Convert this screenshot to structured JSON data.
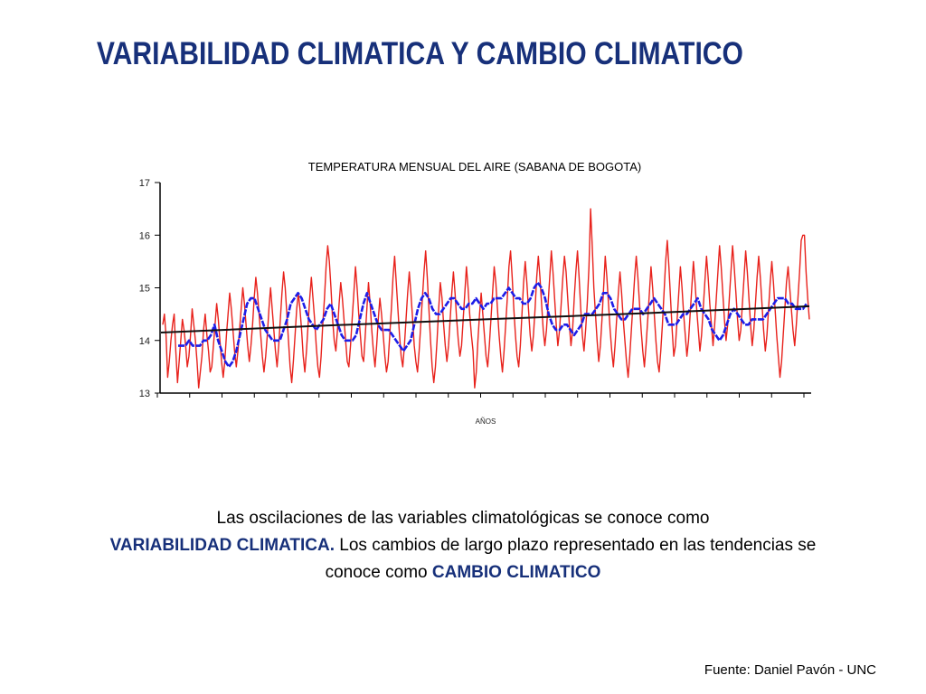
{
  "slide": {
    "title": "VARIABILIDAD CLIMATICA Y CAMBIO CLIMATICO"
  },
  "chart_data": {
    "type": "line",
    "title": "TEMPERATURA MENSUAL DEL AIRE (SABANA DE BOGOTA)",
    "xlabel": "AÑOS",
    "ylabel": "",
    "ylim": [
      13,
      17
    ],
    "yticks": [
      "13",
      "14",
      "15",
      "16",
      "17"
    ],
    "xticks": [
      "",
      "",
      "",
      "",
      "",
      "",
      "",
      "",
      "",
      "",
      "",
      "",
      "",
      "",
      "",
      "",
      "",
      "",
      "",
      "",
      ""
    ],
    "grid": false,
    "series": [
      {
        "values": [
          14.3,
          14.5,
          14.1,
          13.3,
          13.6,
          14.0,
          14.3,
          14.5,
          13.8,
          13.2,
          13.6,
          14.0,
          14.4,
          14.2,
          13.9,
          13.5,
          13.7,
          14.1,
          14.6,
          14.3,
          14.0,
          13.6,
          13.1,
          13.4,
          13.7,
          14.2,
          14.5,
          14.1,
          13.8,
          13.4,
          13.5,
          13.9,
          14.3,
          14.7,
          14.4,
          14.0,
          13.6,
          13.3,
          13.6,
          14.1,
          14.5,
          14.9,
          14.6,
          14.2,
          13.8,
          13.5,
          13.8,
          14.2,
          14.6,
          15.0,
          14.7,
          14.3,
          13.9,
          13.6,
          13.9,
          14.3,
          14.8,
          15.2,
          14.9,
          14.5,
          14.1,
          13.7,
          13.4,
          13.7,
          14.1,
          14.6,
          15.0,
          14.6,
          14.2,
          13.8,
          13.5,
          13.9,
          14.4,
          14.9,
          15.3,
          15.0,
          14.5,
          14.0,
          13.5,
          13.2,
          13.6,
          14.1,
          14.6,
          14.9,
          14.6,
          14.2,
          13.7,
          13.4,
          13.8,
          14.3,
          14.8,
          15.2,
          14.8,
          14.4,
          13.9,
          13.5,
          13.3,
          13.7,
          14.3,
          14.8,
          15.4,
          15.8,
          15.5,
          15.0,
          14.4,
          14.0,
          13.8,
          14.2,
          14.7,
          15.1,
          14.8,
          14.4,
          14.0,
          13.6,
          13.5,
          13.9,
          14.4,
          14.9,
          15.4,
          15.0,
          14.5,
          14.1,
          13.7,
          13.6,
          14.1,
          14.6,
          15.1,
          14.7,
          14.2,
          13.8,
          13.5,
          13.9,
          14.4,
          14.8,
          14.5,
          14.1,
          13.7,
          13.4,
          13.6,
          14.1,
          14.6,
          15.2,
          15.6,
          15.1,
          14.6,
          14.1,
          13.7,
          13.5,
          13.9,
          14.4,
          14.9,
          15.3,
          14.9,
          14.4,
          13.9,
          13.6,
          13.4,
          13.8,
          14.3,
          14.8,
          15.3,
          15.7,
          15.2,
          14.6,
          14.0,
          13.5,
          13.2,
          13.5,
          14.0,
          14.6,
          15.1,
          14.8,
          14.3,
          13.9,
          13.6,
          13.9,
          14.4,
          14.9,
          15.3,
          14.9,
          14.4,
          14.0,
          13.7,
          13.9,
          14.4,
          14.9,
          15.4,
          15.0,
          14.5,
          14.1,
          13.8,
          13.1,
          13.4,
          14.0,
          14.5,
          14.9,
          14.5,
          14.1,
          13.7,
          13.5,
          13.9,
          14.4,
          14.9,
          15.4,
          15.1,
          14.6,
          14.1,
          13.7,
          13.4,
          13.8,
          14.3,
          14.8,
          15.4,
          15.7,
          15.2,
          14.6,
          14.1,
          13.7,
          13.5,
          13.9,
          14.5,
          15.1,
          15.5,
          15.1,
          14.6,
          14.1,
          13.8,
          14.1,
          14.6,
          15.2,
          15.6,
          15.2,
          14.7,
          14.2,
          13.9,
          14.2,
          14.7,
          15.2,
          15.7,
          15.3,
          14.8,
          14.3,
          13.9,
          14.2,
          14.7,
          15.2,
          15.6,
          15.3,
          14.8,
          14.3,
          13.9,
          14.2,
          14.8,
          15.3,
          15.7,
          15.2,
          14.6,
          14.1,
          13.8,
          14.2,
          14.7,
          15.4,
          16.5,
          15.8,
          15.0,
          14.5,
          14.0,
          13.6,
          13.9,
          14.4,
          15.0,
          15.6,
          15.2,
          14.7,
          14.2,
          13.8,
          13.5,
          13.9,
          14.4,
          14.9,
          15.3,
          14.9,
          14.4,
          14.0,
          13.6,
          13.3,
          13.7,
          14.2,
          14.7,
          15.2,
          15.6,
          15.2,
          14.7,
          14.2,
          13.8,
          13.5,
          13.9,
          14.4,
          14.9,
          15.4,
          15.0,
          14.5,
          14.0,
          13.6,
          13.4,
          13.8,
          14.3,
          14.9,
          15.5,
          15.9,
          15.4,
          14.8,
          14.2,
          13.7,
          13.9,
          14.4,
          14.9,
          15.4,
          15.0,
          14.5,
          14.1,
          13.7,
          14.0,
          14.5,
          15.0,
          15.5,
          15.1,
          14.6,
          14.2,
          13.8,
          14.1,
          14.6,
          15.1,
          15.6,
          15.2,
          14.7,
          14.3,
          13.9,
          14.3,
          14.8,
          15.3,
          15.8,
          15.4,
          14.9,
          14.4,
          14.0,
          14.3,
          14.8,
          15.3,
          15.8,
          15.4,
          14.9,
          14.4,
          14.0,
          14.2,
          14.7,
          15.2,
          15.7,
          15.3,
          14.8,
          14.3,
          13.9,
          14.2,
          14.7,
          15.2,
          15.6,
          15.2,
          14.7,
          14.2,
          13.8,
          14.1,
          14.6,
          15.1,
          15.5,
          15.1,
          14.6,
          14.1,
          13.7,
          13.3,
          13.6,
          14.1,
          14.6,
          15.1,
          15.4,
          15.0,
          14.6,
          14.2,
          13.9,
          14.3,
          14.8,
          15.3,
          15.9,
          16.0,
          16.0,
          15.3,
          14.8,
          14.4
        ]
      },
      {
        "values": [
          13.9,
          13.9,
          13.9,
          14.0,
          13.9,
          13.9,
          13.9,
          14.0,
          14.0,
          14.1,
          14.3,
          14.0,
          13.8,
          13.6,
          13.5,
          13.6,
          13.8,
          14.1,
          14.4,
          14.7,
          14.8,
          14.8,
          14.6,
          14.4,
          14.2,
          14.1,
          14.0,
          14.0,
          14.0,
          14.2,
          14.4,
          14.7,
          14.8,
          14.9,
          14.8,
          14.6,
          14.4,
          14.3,
          14.2,
          14.3,
          14.4,
          14.6,
          14.7,
          14.5,
          14.3,
          14.1,
          14.0,
          14.0,
          14.0,
          14.1,
          14.4,
          14.7,
          14.9,
          14.7,
          14.5,
          14.3,
          14.2,
          14.2,
          14.2,
          14.1,
          14.0,
          13.9,
          13.8,
          13.9,
          14.0,
          14.3,
          14.6,
          14.8,
          14.9,
          14.8,
          14.6,
          14.5,
          14.5,
          14.6,
          14.7,
          14.8,
          14.8,
          14.7,
          14.6,
          14.6,
          14.7,
          14.7,
          14.8,
          14.7,
          14.6,
          14.7,
          14.7,
          14.8,
          14.8,
          14.8,
          14.9,
          15.0,
          14.9,
          14.8,
          14.8,
          14.7,
          14.7,
          14.8,
          15.0,
          15.1,
          15.0,
          14.8,
          14.5,
          14.3,
          14.2,
          14.2,
          14.3,
          14.3,
          14.2,
          14.1,
          14.2,
          14.3,
          14.5,
          14.5,
          14.5,
          14.6,
          14.7,
          14.9,
          14.9,
          14.8,
          14.6,
          14.5,
          14.4,
          14.4,
          14.5,
          14.6,
          14.6,
          14.6,
          14.5,
          14.6,
          14.7,
          14.8,
          14.7,
          14.6,
          14.5,
          14.3,
          14.3,
          14.3,
          14.4,
          14.5,
          14.5,
          14.6,
          14.7,
          14.8,
          14.6,
          14.5,
          14.4,
          14.2,
          14.1,
          14.0,
          14.1,
          14.3,
          14.5,
          14.6,
          14.5,
          14.4,
          14.3,
          14.3,
          14.4,
          14.4,
          14.4,
          14.4,
          14.5,
          14.6,
          14.7,
          14.8,
          14.8,
          14.8,
          14.7,
          14.7,
          14.6,
          14.6,
          14.6,
          14.7
        ]
      },
      {
        "values": [
          14.15,
          14.28,
          14.4,
          14.52,
          14.65
        ]
      }
    ]
  },
  "caption": {
    "part1": "Las oscilaciones de las variables climatológicas se conoce como",
    "hl1": "VARIABILIDAD CLIMATICA.",
    "part2": " Los cambios de largo plazo representado en las tendencias se conoce como ",
    "hl2": "CAMBIO CLIMATICO"
  },
  "footer": {
    "source": "Fuente: Daniel Pavón - UNC"
  },
  "colors": {
    "title": "#17307a",
    "highlight": "#17307a",
    "monthly_series": "#e8221c",
    "smoothed_series": "#1d1de8",
    "trend_line": "#111111",
    "axis": "#000000"
  }
}
